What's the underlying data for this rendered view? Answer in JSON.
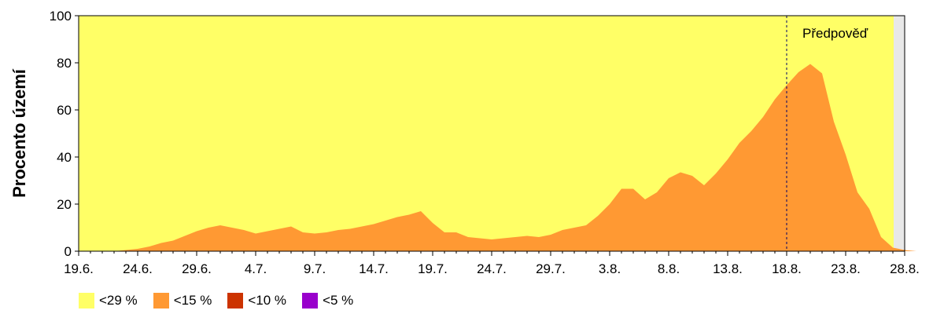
{
  "chart_data": {
    "type": "area",
    "title": "",
    "xlabel": "",
    "ylabel": "Procento území",
    "ylim": [
      0,
      100
    ],
    "yticks": [
      "0",
      "20",
      "40",
      "60",
      "80",
      "100"
    ],
    "xticks": [
      "19.6.",
      "24.6.",
      "29.6.",
      "4.7.",
      "9.7.",
      "14.7.",
      "19.7.",
      "24.7.",
      "29.7.",
      "3.8.",
      "8.8.",
      "13.8.",
      "18.8.",
      "23.8.",
      "28.8."
    ],
    "x_start": "19.6.",
    "forecast_label": "Předpověď",
    "forecast_from": "18.8.",
    "background_series": {
      "name": "<29 %",
      "color": "#ffff66",
      "value": 100
    },
    "series": [
      {
        "name": "<15 %",
        "color": "#ff9933",
        "values": [
          0,
          0,
          0,
          0,
          0.5,
          1,
          2,
          3.5,
          4.5,
          6.5,
          8.5,
          10,
          11,
          10,
          9,
          7.5,
          8.5,
          9.5,
          10.5,
          8,
          7.5,
          8,
          9,
          9.5,
          10.5,
          11.5,
          13,
          14.5,
          15.5,
          17,
          12,
          8,
          8,
          6,
          5.5,
          5,
          5.5,
          6,
          6.5,
          6,
          7,
          9,
          10,
          11,
          15,
          20,
          26.5,
          26.5,
          22,
          25,
          31,
          33.5,
          32,
          28,
          33,
          39,
          46,
          51,
          57,
          64.5,
          70.5,
          76,
          79.5,
          75.5,
          55,
          41,
          25,
          18,
          6,
          1.5,
          0.5,
          0,
          0,
          0,
          0,
          0,
          0,
          0,
          0,
          0,
          0
        ]
      },
      {
        "name": "<10 %",
        "color": "#cc3300",
        "values": []
      },
      {
        "name": "<5 %",
        "color": "#9900cc",
        "values": []
      }
    ],
    "legend_position": "bottom-left"
  }
}
